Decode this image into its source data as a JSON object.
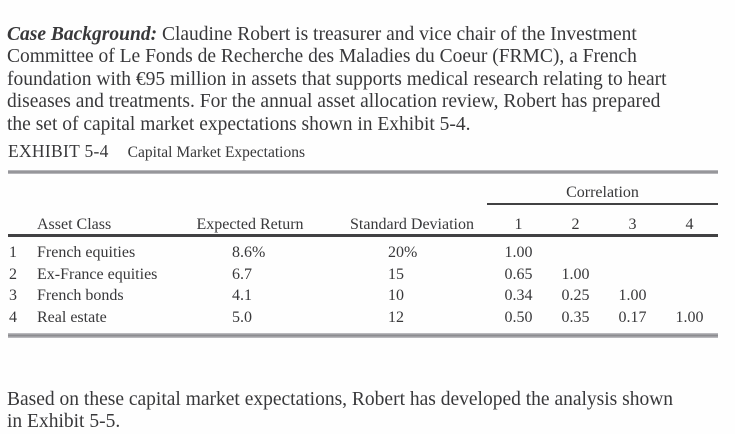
{
  "intro": {
    "lead": "Case Background:",
    "text": " Claudine Robert is treasurer and vice chair of the Investment\nCommittee of Le Fonds de Recherche des Maladies du Coeur (FRMC), a French\nfoundation with €95 million in assets that supports medical research relating to heart\ndiseases and treatments. For the annual asset allocation review, Robert has prepared\nthe set of capital market expectations shown in Exhibit 5-4."
  },
  "exhibit": {
    "label": "EXHIBIT 5-4",
    "title": "Capital Market Expectations"
  },
  "table": {
    "correlation_header": "Correlation",
    "columns": {
      "asset_class": "Asset Class",
      "expected_return": "Expected Return",
      "standard_deviation": "Standard Deviation",
      "corr": [
        "1",
        "2",
        "3",
        "4"
      ]
    },
    "rows": [
      {
        "num": "1",
        "asset": "French equities",
        "expected_return": "8.6%",
        "standard_deviation": "20%",
        "corr": [
          "1.00",
          "",
          "",
          ""
        ]
      },
      {
        "num": "2",
        "asset": "Ex-France equities",
        "expected_return": "6.7",
        "standard_deviation": "15",
        "corr": [
          "0.65",
          "1.00",
          "",
          ""
        ]
      },
      {
        "num": "3",
        "asset": "French bonds",
        "expected_return": "4.1",
        "standard_deviation": "10",
        "corr": [
          "0.34",
          "0.25",
          "1.00",
          ""
        ]
      },
      {
        "num": "4",
        "asset": "Real estate",
        "expected_return": "5.0",
        "standard_deviation": "12",
        "corr": [
          "0.50",
          "0.35",
          "0.17",
          "1.00"
        ]
      }
    ]
  },
  "outro": {
    "text": "Based on these capital market expectations, Robert has developed the analysis shown\nin Exhibit 5-5."
  },
  "colors": {
    "text": "#38383a",
    "rule_gray": "#9a9a9e",
    "rule_dark": "#414143",
    "background": "#fefefe"
  }
}
